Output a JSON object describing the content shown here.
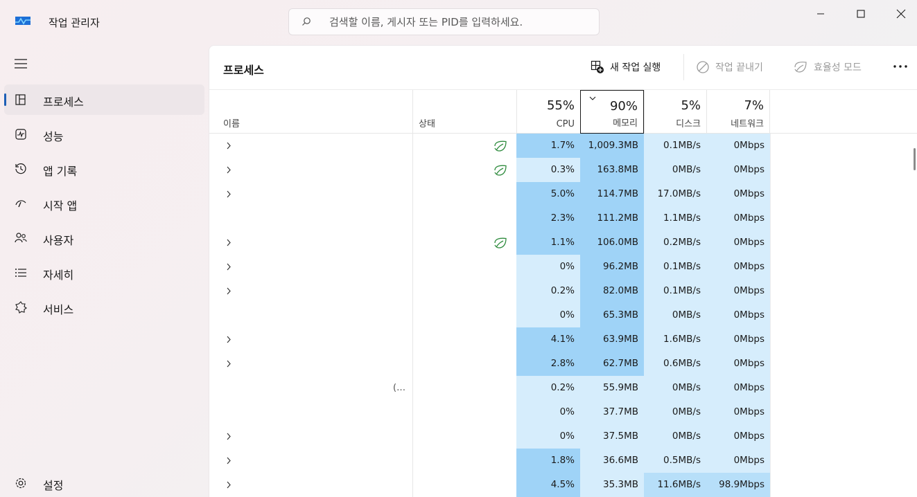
{
  "app": {
    "title": "작업 관리자"
  },
  "search": {
    "placeholder": "검색할 이름, 게시자 또는 PID를 입력하세요."
  },
  "sidebar": {
    "items": [
      {
        "label": "프로세스",
        "icon": "processes-icon",
        "active": true
      },
      {
        "label": "성능",
        "icon": "performance-icon",
        "active": false
      },
      {
        "label": "앱 기록",
        "icon": "history-icon",
        "active": false
      },
      {
        "label": "시작 앱",
        "icon": "startup-icon",
        "active": false
      },
      {
        "label": "사용자",
        "icon": "users-icon",
        "active": false
      },
      {
        "label": "자세히",
        "icon": "details-icon",
        "active": false
      },
      {
        "label": "서비스",
        "icon": "services-icon",
        "active": false
      }
    ],
    "settings_label": "설정"
  },
  "toolbar": {
    "title": "프로세스",
    "new_task": "새 작업 실행",
    "end_task": "작업 끝내기",
    "efficiency": "효율성 모드"
  },
  "columns": {
    "name": "이름",
    "status": "상태",
    "cpu": {
      "label": "CPU",
      "pct": "55%"
    },
    "memory": {
      "label": "메모리",
      "pct": "90%"
    },
    "disk": {
      "label": "디스크",
      "pct": "5%"
    },
    "network": {
      "label": "네트워크",
      "pct": "7%"
    }
  },
  "colors": {
    "heat_strong": "#9fd3f7",
    "heat_medium": "#b7dff9",
    "heat_light": "#d6edfc",
    "accent": "#1d5fb6",
    "leaf": "#2e8b3d"
  },
  "rows": [
    {
      "expand": true,
      "name": "",
      "efficiency": true,
      "cpu": "1.7%",
      "mem": "1,009.3MB",
      "disk": "0.1MB/s",
      "net": "0Mbps",
      "cpu_heat": "strong",
      "mem_heat": "strong",
      "disk_heat": "light",
      "net_heat": "light"
    },
    {
      "expand": true,
      "name": "",
      "efficiency": true,
      "cpu": "0.3%",
      "mem": "163.8MB",
      "disk": "0MB/s",
      "net": "0Mbps",
      "cpu_heat": "light",
      "mem_heat": "strong",
      "disk_heat": "light",
      "net_heat": "light"
    },
    {
      "expand": true,
      "name": "",
      "efficiency": false,
      "cpu": "5.0%",
      "mem": "114.7MB",
      "disk": "17.0MB/s",
      "net": "0Mbps",
      "cpu_heat": "strong",
      "mem_heat": "strong",
      "disk_heat": "light",
      "net_heat": "light"
    },
    {
      "expand": false,
      "name": "",
      "efficiency": false,
      "cpu": "2.3%",
      "mem": "111.2MB",
      "disk": "1.1MB/s",
      "net": "0Mbps",
      "cpu_heat": "strong",
      "mem_heat": "strong",
      "disk_heat": "light",
      "net_heat": "light"
    },
    {
      "expand": true,
      "name": "",
      "efficiency": true,
      "cpu": "1.1%",
      "mem": "106.0MB",
      "disk": "0.2MB/s",
      "net": "0Mbps",
      "cpu_heat": "strong",
      "mem_heat": "strong",
      "disk_heat": "light",
      "net_heat": "light"
    },
    {
      "expand": true,
      "name": "",
      "efficiency": false,
      "cpu": "0%",
      "mem": "96.2MB",
      "disk": "0.1MB/s",
      "net": "0Mbps",
      "cpu_heat": "light",
      "mem_heat": "strong",
      "disk_heat": "light",
      "net_heat": "light"
    },
    {
      "expand": true,
      "name": "",
      "efficiency": false,
      "cpu": "0.2%",
      "mem": "82.0MB",
      "disk": "0.1MB/s",
      "net": "0Mbps",
      "cpu_heat": "light",
      "mem_heat": "strong",
      "disk_heat": "light",
      "net_heat": "light"
    },
    {
      "expand": false,
      "name": "",
      "efficiency": false,
      "cpu": "0%",
      "mem": "65.3MB",
      "disk": "0MB/s",
      "net": "0Mbps",
      "cpu_heat": "light",
      "mem_heat": "strong",
      "disk_heat": "light",
      "net_heat": "light"
    },
    {
      "expand": true,
      "name": "",
      "efficiency": false,
      "cpu": "4.1%",
      "mem": "63.9MB",
      "disk": "1.6MB/s",
      "net": "0Mbps",
      "cpu_heat": "strong",
      "mem_heat": "strong",
      "disk_heat": "light",
      "net_heat": "light"
    },
    {
      "expand": true,
      "name": "",
      "efficiency": false,
      "cpu": "2.8%",
      "mem": "62.7MB",
      "disk": "0.6MB/s",
      "net": "0Mbps",
      "cpu_heat": "strong",
      "mem_heat": "strong",
      "disk_heat": "light",
      "net_heat": "light"
    },
    {
      "expand": false,
      "name": "(...",
      "efficiency": false,
      "cpu": "0.2%",
      "mem": "55.9MB",
      "disk": "0MB/s",
      "net": "0Mbps",
      "cpu_heat": "light",
      "mem_heat": "light",
      "disk_heat": "light",
      "net_heat": "light"
    },
    {
      "expand": false,
      "name": "",
      "efficiency": false,
      "cpu": "0%",
      "mem": "37.7MB",
      "disk": "0MB/s",
      "net": "0Mbps",
      "cpu_heat": "light",
      "mem_heat": "light",
      "disk_heat": "light",
      "net_heat": "light"
    },
    {
      "expand": true,
      "name": "",
      "efficiency": false,
      "cpu": "0%",
      "mem": "37.5MB",
      "disk": "0MB/s",
      "net": "0Mbps",
      "cpu_heat": "light",
      "mem_heat": "light",
      "disk_heat": "light",
      "net_heat": "light"
    },
    {
      "expand": true,
      "name": "",
      "efficiency": false,
      "cpu": "1.8%",
      "mem": "36.6MB",
      "disk": "0.5MB/s",
      "net": "0Mbps",
      "cpu_heat": "strong",
      "mem_heat": "light",
      "disk_heat": "light",
      "net_heat": "light"
    },
    {
      "expand": true,
      "name": "",
      "efficiency": false,
      "cpu": "4.5%",
      "mem": "35.3MB",
      "disk": "11.6MB/s",
      "net": "98.9Mbps",
      "cpu_heat": "strong",
      "mem_heat": "light",
      "disk_heat": "medium",
      "net_heat": "medium"
    }
  ]
}
